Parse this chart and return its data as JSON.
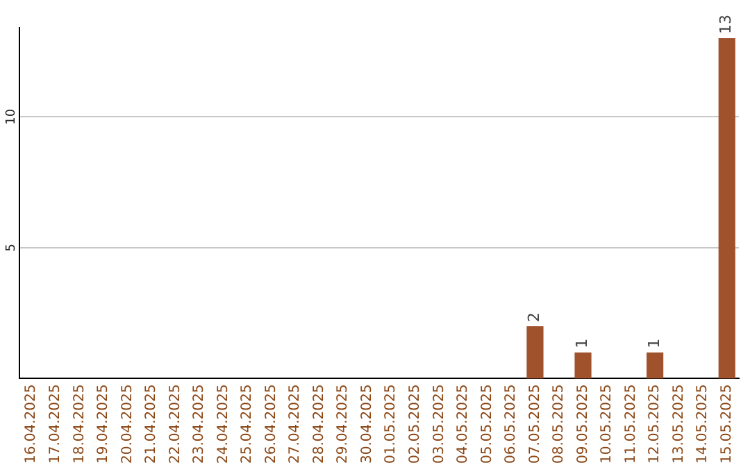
{
  "chart_data": {
    "type": "bar",
    "categories": [
      "16.04.2025",
      "17.04.2025",
      "18.04.2025",
      "19.04.2025",
      "20.04.2025",
      "21.04.2025",
      "22.04.2025",
      "23.04.2025",
      "24.04.2025",
      "25.04.2025",
      "26.04.2025",
      "27.04.2025",
      "28.04.2025",
      "29.04.2025",
      "30.04.2025",
      "01.05.2025",
      "02.05.2025",
      "03.05.2025",
      "04.05.2025",
      "05.05.2025",
      "06.05.2025",
      "07.05.2025",
      "08.05.2025",
      "09.05.2025",
      "10.05.2025",
      "11.05.2025",
      "12.05.2025",
      "13.05.2025",
      "14.05.2025",
      "15.05.2025"
    ],
    "values": [
      0,
      0,
      0,
      0,
      0,
      0,
      0,
      0,
      0,
      0,
      0,
      0,
      0,
      0,
      0,
      0,
      0,
      0,
      0,
      0,
      0,
      2,
      0,
      1,
      0,
      0,
      1,
      0,
      0,
      13
    ],
    "value_labels": [
      null,
      null,
      null,
      null,
      null,
      null,
      null,
      null,
      null,
      null,
      null,
      null,
      null,
      null,
      null,
      null,
      null,
      null,
      null,
      null,
      null,
      "2",
      null,
      "1",
      null,
      null,
      "1",
      null,
      null,
      "13"
    ],
    "color": "#a0522d",
    "ylim": [
      0,
      13.4
    ],
    "yticks": [
      5,
      10
    ],
    "grid": "y",
    "legend": false
  }
}
